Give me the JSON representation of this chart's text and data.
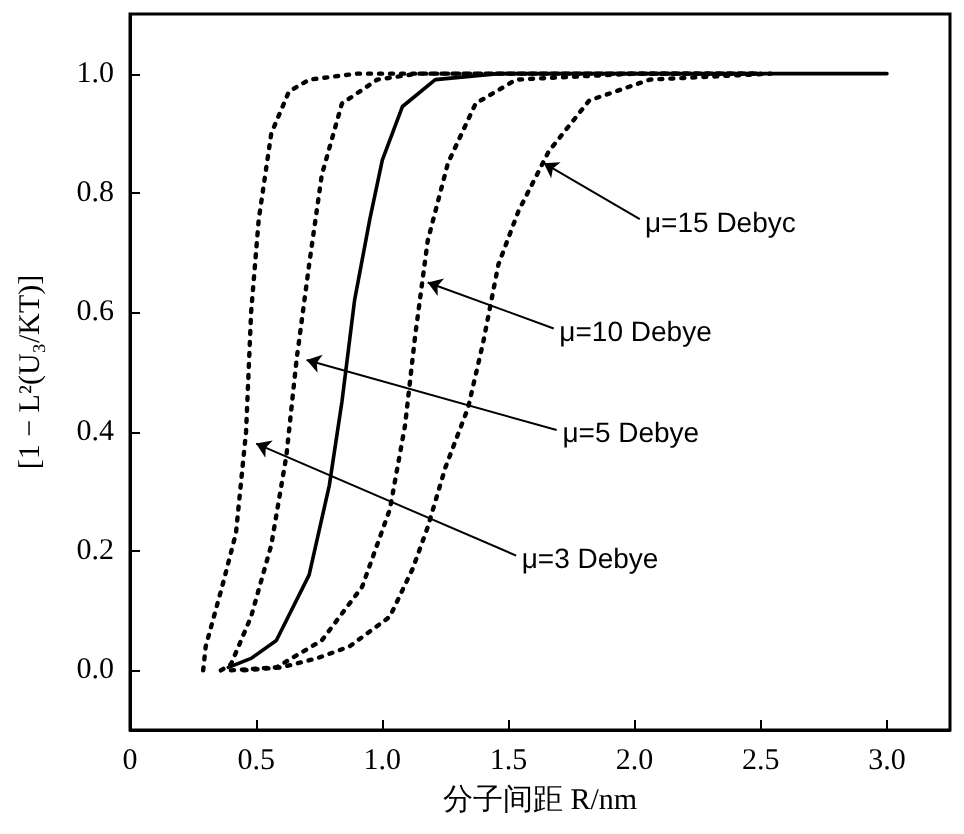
{
  "chart_data": {
    "type": "line",
    "xlabel": "分子间距 R/nm",
    "ylabel": "[1 − L²(U₃/KT)]",
    "xlim": [
      0,
      3.25
    ],
    "ylim": [
      -0.1,
      1.1
    ],
    "xticks": [
      0,
      {
        "value": 0.5,
        "label": "0.5"
      },
      {
        "value": 1,
        "label": "1.0"
      },
      {
        "value": 1.5,
        "label": "1.5"
      },
      {
        "value": 2,
        "label": "2.0"
      },
      {
        "value": 2.5,
        "label": "2.5"
      },
      {
        "value": 3,
        "label": "3.0"
      }
    ],
    "yticks": [
      {
        "value": 0,
        "label": "0.0"
      },
      {
        "value": 0.2,
        "label": "0.2"
      },
      {
        "value": 0.4,
        "label": "0.4"
      },
      {
        "value": 0.6,
        "label": "0.6"
      },
      {
        "value": 0.8,
        "label": "0.8"
      },
      {
        "value": 1,
        "label": "1.0"
      }
    ],
    "grid": false,
    "marker": "none",
    "series": [
      {
        "color": "#000000",
        "line_style": "dotted",
        "x": [
          0.29,
          0.3,
          0.365,
          0.42,
          0.46,
          0.48,
          0.51,
          0.56,
          0.63,
          0.71,
          0.9,
          1.5,
          2.5
        ],
        "values": [
          0.0,
          0.04,
          0.14,
          0.23,
          0.4,
          0.6,
          0.755,
          0.9,
          0.97,
          0.99,
          1.0,
          1.0,
          1.0
        ]
      },
      {
        "color": "#000000",
        "line_style": "dotted",
        "x": [
          0.36,
          0.4,
          0.48,
          0.56,
          0.62,
          0.66,
          0.71,
          0.76,
          0.84,
          0.98,
          1.14,
          1.8,
          2.5
        ],
        "values": [
          0.0,
          0.01,
          0.09,
          0.21,
          0.36,
          0.52,
          0.68,
          0.83,
          0.95,
          0.99,
          1.0,
          1.0,
          1.0
        ]
      },
      {
        "color": "#000000",
        "line_style": "solid",
        "x": [
          0.39,
          0.48,
          0.58,
          0.71,
          0.79,
          0.84,
          0.89,
          0.95,
          1.0,
          1.08,
          1.21,
          1.46,
          2.0,
          3.0
        ],
        "values": [
          0.005,
          0.02,
          0.05,
          0.16,
          0.31,
          0.45,
          0.62,
          0.755,
          0.855,
          0.945,
          0.99,
          1.0,
          1.0,
          1.0
        ]
      },
      {
        "color": "#000000",
        "line_style": "dotted",
        "x": [
          0.4,
          0.58,
          0.76,
          0.92,
          1.03,
          1.09,
          1.13,
          1.18,
          1.26,
          1.37,
          1.53,
          2.0,
          2.5
        ],
        "values": [
          0.0,
          0.005,
          0.05,
          0.14,
          0.27,
          0.41,
          0.56,
          0.72,
          0.85,
          0.95,
          0.99,
          1.0,
          1.0
        ]
      },
      {
        "color": "#000000",
        "line_style": "dotted",
        "x": [
          0.45,
          0.6,
          0.74,
          0.87,
          1.03,
          1.12,
          1.18,
          1.25,
          1.34,
          1.4,
          1.46,
          1.54,
          1.66,
          1.82,
          2.06,
          2.54
        ],
        "values": [
          0.0,
          0.005,
          0.02,
          0.04,
          0.09,
          0.17,
          0.24,
          0.34,
          0.44,
          0.55,
          0.68,
          0.77,
          0.87,
          0.955,
          0.99,
          1.0
        ]
      }
    ],
    "annotations": [
      {
        "text": "μ=15 Debyc",
        "x": 1.64,
        "y": 0.85
      },
      {
        "text": "μ=10 Debye",
        "x": 1.18,
        "y": 0.65
      },
      {
        "text": "μ=5 Debye",
        "x": 0.7,
        "y": 0.52
      },
      {
        "text": "μ=3 Debye",
        "x": 0.5,
        "y": 0.38
      }
    ]
  }
}
